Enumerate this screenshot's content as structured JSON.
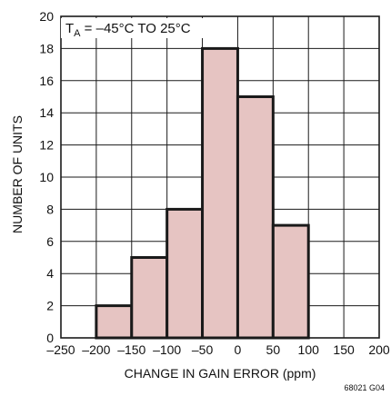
{
  "chart_data": {
    "type": "bar",
    "annotation": "T_A = –45°C TO 25°C",
    "annotation_main": "T",
    "annotation_sub": "A",
    "annotation_rest": " = –45°C TO 25°C",
    "xlabel": "CHANGE IN GAIN ERROR (ppm)",
    "ylabel": "NUMBER OF UNITS",
    "figure_id": "68021 G04",
    "xlim": [
      -250,
      200
    ],
    "ylim": [
      0,
      20
    ],
    "x_ticks": [
      -250,
      -200,
      -150,
      -100,
      -50,
      0,
      50,
      100,
      150,
      200
    ],
    "x_tick_labels": [
      "–250",
      "–200",
      "–150",
      "–100",
      "–50",
      "0",
      "50",
      "100",
      "150",
      "200"
    ],
    "y_ticks": [
      0,
      2,
      4,
      6,
      8,
      10,
      12,
      14,
      16,
      18,
      20
    ],
    "bins": [
      {
        "x0": -200,
        "x1": -150,
        "count": 2
      },
      {
        "x0": -150,
        "x1": -100,
        "count": 5
      },
      {
        "x0": -100,
        "x1": -50,
        "count": 8
      },
      {
        "x0": -50,
        "x1": 0,
        "count": 18
      },
      {
        "x0": 0,
        "x1": 50,
        "count": 15
      },
      {
        "x0": 50,
        "x1": 100,
        "count": 7
      }
    ],
    "grid": true,
    "colors": {
      "bar_fill": "#e6c4c2",
      "bar_stroke": "#1a1a1a",
      "grid": "#1a1a1a",
      "axis": "#1a1a1a"
    }
  }
}
